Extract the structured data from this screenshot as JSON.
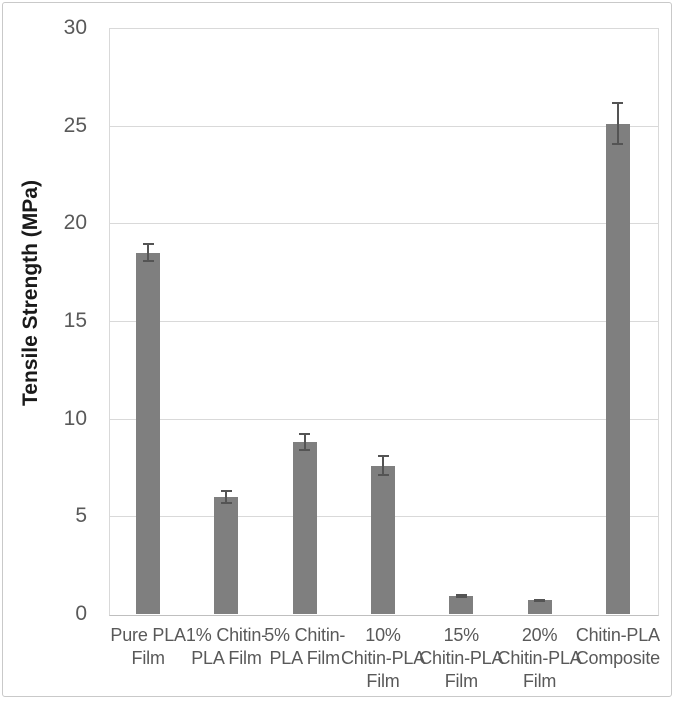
{
  "figure": {
    "background": "#ffffff",
    "frame_border_color": "#c9c9c9"
  },
  "chart_data": {
    "type": "bar",
    "title": "",
    "xlabel": "",
    "ylabel": "Tensile Strength (MPa)",
    "ylim": [
      0,
      30
    ],
    "yticks": [
      0,
      5,
      10,
      15,
      20,
      25,
      30
    ],
    "grid": true,
    "legend_position": "none",
    "categories": [
      "Pure PLA Film",
      "1% Chitin-PLA Film",
      "5% Chitin-PLA Film",
      "10% Chitin-PLA Film",
      "15% Chitin-PLA Film",
      "20% Chitin-PLA Film",
      "Chitin-PLA Composite"
    ],
    "category_label_lines": [
      [
        "Pure PLA",
        "Film"
      ],
      [
        "1% Chitin-",
        "PLA Film"
      ],
      [
        "5% Chitin-",
        "PLA Film"
      ],
      [
        "10%",
        "Chitin-PLA",
        "Film"
      ],
      [
        "15%",
        "Chitin-PLA",
        "Film"
      ],
      [
        "20%",
        "Chitin-PLA",
        "Film"
      ],
      [
        "Chitin-PLA",
        "Composite"
      ]
    ],
    "series": [
      {
        "name": "Tensile Strength (MPa)",
        "values": [
          18.5,
          6.0,
          8.8,
          7.6,
          0.9,
          0.7,
          25.1
        ],
        "error_bars": [
          0.5,
          0.35,
          0.45,
          0.55,
          0.1,
          0.08,
          1.1
        ]
      }
    ],
    "colors": {
      "bar_fill": "#7f7f7f",
      "error_bar": "#545454",
      "gridline": "#d9d9d9",
      "axis_line": "#bfbfbf",
      "tick_label": "#595959",
      "axis_title": "#1a1a1a"
    }
  }
}
